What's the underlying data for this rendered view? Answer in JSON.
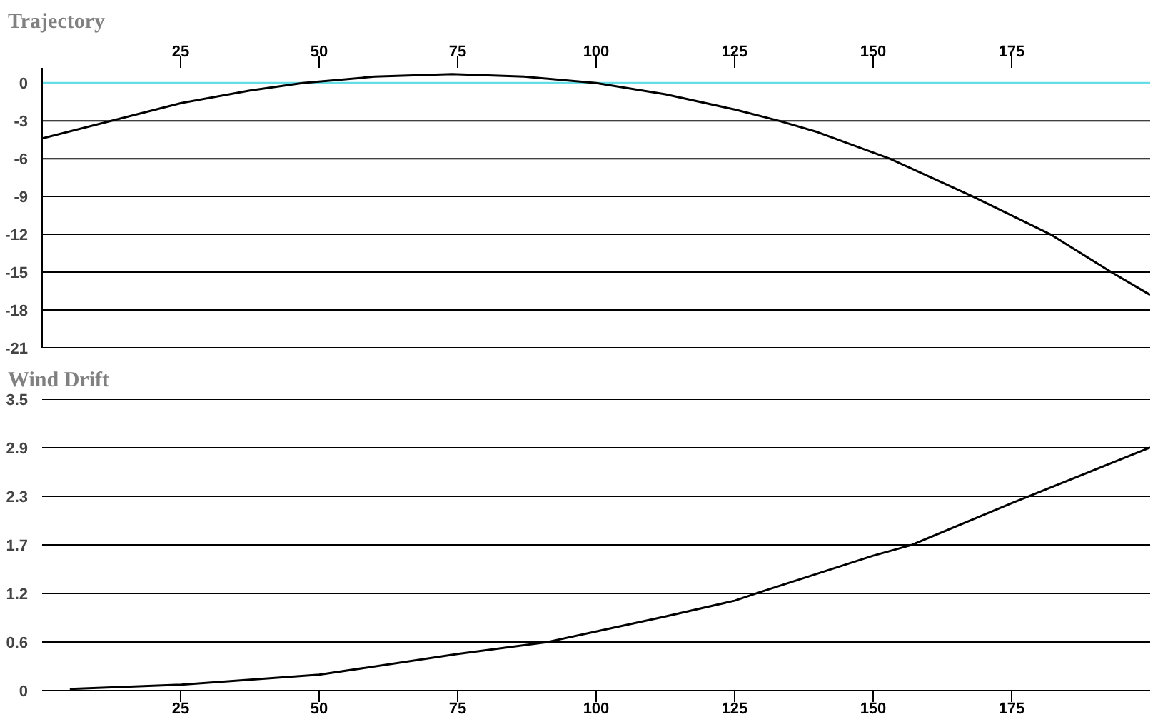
{
  "chart_data": [
    {
      "type": "line",
      "title": "Trajectory",
      "xlim": [
        0,
        200
      ],
      "xticks": [
        25,
        50,
        75,
        100,
        125,
        150,
        175
      ],
      "ylim": [
        -21,
        1.2
      ],
      "yticks": [
        0,
        -3,
        -6,
        -9,
        -12,
        -15,
        -18,
        -21
      ],
      "grid": "y",
      "series": [
        {
          "color": "#66dde6",
          "x": [
            0,
            200
          ],
          "values": [
            0,
            0
          ]
        },
        {
          "color": "#000000",
          "x": [
            0,
            25,
            37.5,
            47,
            60,
            74,
            87,
            100,
            112.5,
            125,
            133,
            140,
            153,
            168,
            182,
            193,
            200
          ],
          "values": [
            -4.4,
            -1.6,
            -0.6,
            0,
            0.5,
            0.7,
            0.5,
            0,
            -0.9,
            -2.1,
            -3,
            -3.9,
            -6,
            -9,
            -12,
            -15,
            -16.8
          ]
        }
      ]
    },
    {
      "type": "line",
      "title": "Wind Drift",
      "xlim": [
        0,
        200
      ],
      "xticks": [
        25,
        50,
        75,
        100,
        125,
        150,
        175
      ],
      "ylim": [
        0,
        3.5
      ],
      "yticks": [
        0,
        {
          "value": 0.583,
          "label": "0.6"
        },
        {
          "value": 1.167,
          "label": "1.2"
        },
        {
          "value": 1.75,
          "label": "1.7"
        },
        {
          "value": 2.333,
          "label": "2.3"
        },
        {
          "value": 2.917,
          "label": "2.9"
        },
        3.5
      ],
      "grid": "y",
      "series": [
        {
          "color": "#000000",
          "x": [
            5,
            25,
            50,
            75,
            91,
            100,
            112.5,
            125,
            129,
            150,
            157,
            175,
            200
          ],
          "values": [
            0.02,
            0.07,
            0.19,
            0.44,
            0.58,
            0.71,
            0.89,
            1.08,
            1.17,
            1.62,
            1.75,
            2.25,
            2.92
          ]
        }
      ]
    }
  ]
}
